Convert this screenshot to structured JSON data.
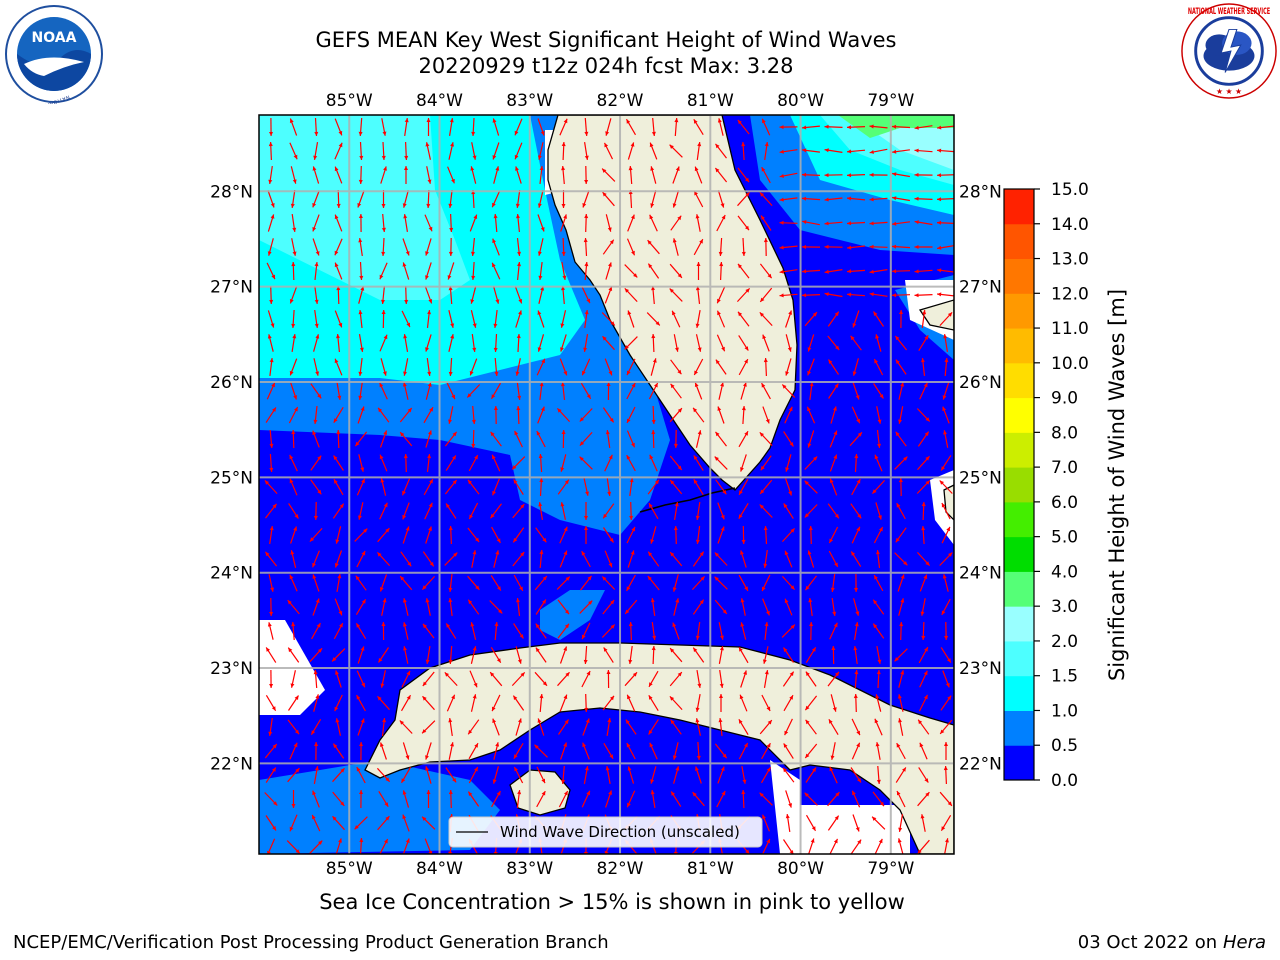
{
  "header": {
    "title_line1": "GEFS MEAN Key West Significant Height of Wind Waves",
    "title_line2": "20220929 t12z 024h fcst   Max: 3.28"
  },
  "logos": {
    "noaa": {
      "text": "NOAA",
      "ring_text": "NATIONAL OCEANIC AND ATMOSPHERIC ADMINISTRATION · U.S. DEPARTMENT OF COMMERCE"
    },
    "nws": {
      "ring_text": "NATIONAL WEATHER SERVICE"
    }
  },
  "map": {
    "lon_labels": [
      "85°W",
      "84°W",
      "83°W",
      "82°W",
      "81°W",
      "80°W",
      "79°W"
    ],
    "lon_values": [
      -85,
      -84,
      -83,
      -82,
      -81,
      -80,
      -79
    ],
    "lat_labels": [
      "28°N",
      "27°N",
      "26°N",
      "25°N",
      "24°N",
      "23°N",
      "22°N"
    ],
    "lat_values": [
      28,
      27,
      26,
      25,
      24,
      23,
      22
    ],
    "extent": {
      "lon_min": -86.0,
      "lon_max": -78.3,
      "lat_min": 21.05,
      "lat_max": 28.8
    },
    "legend_label": "Wind Wave Direction (unscaled)",
    "arrow_color": "#ff0000",
    "land_color": "#efefdb",
    "grid": true
  },
  "colorbar": {
    "label": "Significant Height of Wind Waves [m]",
    "ticks": [
      "15.0",
      "14.0",
      "13.0",
      "12.0",
      "11.0",
      "10.0",
      "9.0",
      "8.0",
      "7.0",
      "6.0",
      "5.0",
      "4.0",
      "3.0",
      "2.0",
      "1.5",
      "1.0",
      "0.5",
      "0.0"
    ],
    "colors_bottom_to_top": [
      "#0000ff",
      "#0080ff",
      "#00ffff",
      "#4dffff",
      "#99ffff",
      "#55ff77",
      "#00dd00",
      "#44ee00",
      "#99dd00",
      "#ccee00",
      "#ffff00",
      "#ffdd00",
      "#ffbb00",
      "#ff9900",
      "#ff7700",
      "#ff5500",
      "#ff2200"
    ]
  },
  "subnote": "Sea Ice Concentration > 15% is shown in pink to yellow",
  "footer": {
    "left": "NCEP/EMC/Verification Post Processing Product Generation Branch",
    "right_date": "03 Oct 2022 on ",
    "right_host": "Hera"
  }
}
